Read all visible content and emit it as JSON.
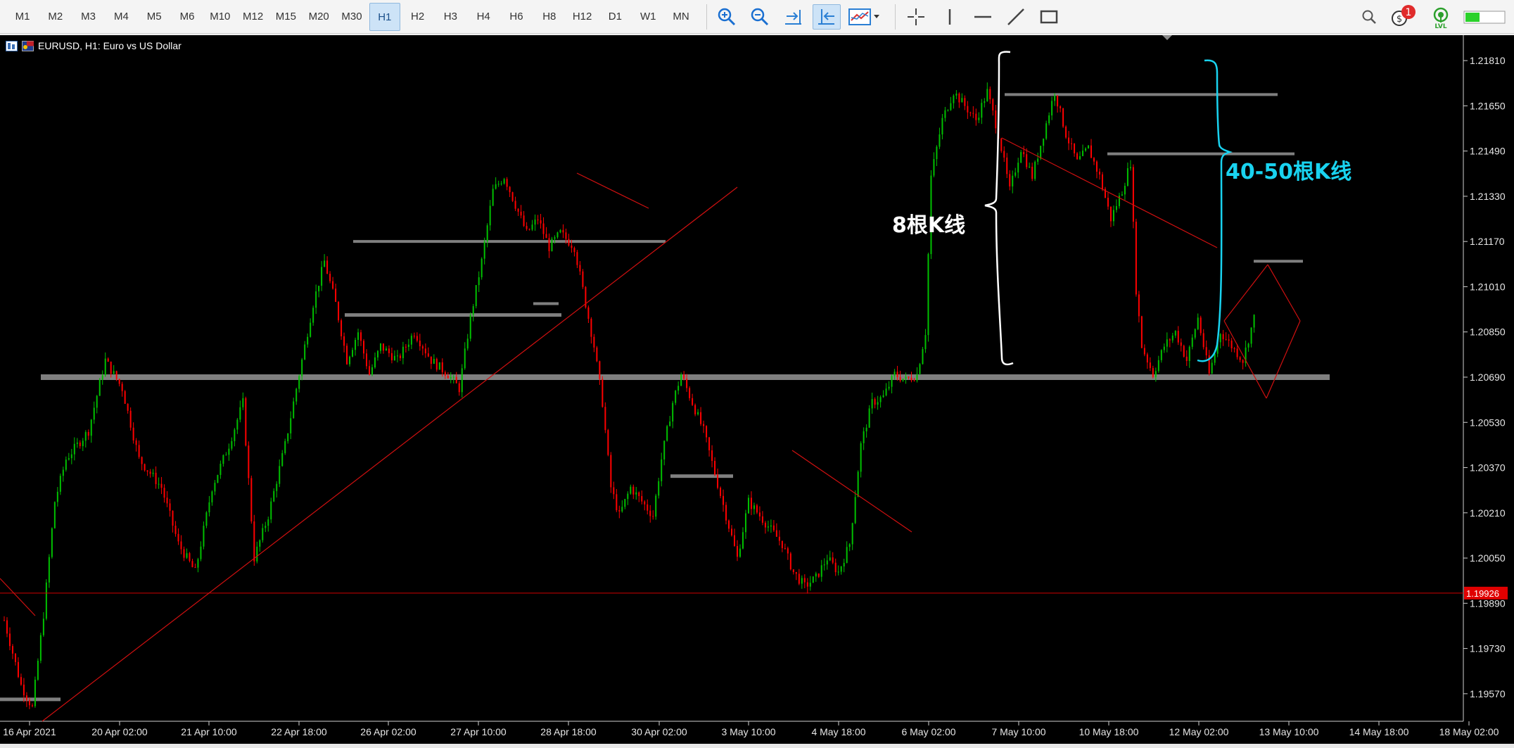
{
  "toolbar": {
    "timeframes": [
      "M1",
      "M2",
      "M3",
      "M4",
      "M5",
      "M6",
      "M10",
      "M12",
      "M15",
      "M20",
      "M30",
      "H1",
      "H2",
      "H3",
      "H4",
      "H6",
      "H8",
      "H12",
      "D1",
      "W1",
      "MN"
    ],
    "active_timeframe": "H1",
    "icons": [
      "zoom-in-icon",
      "zoom-out-icon",
      "scroll-end-icon",
      "chart-shift-icon",
      "indicators-icon",
      "crosshair-icon",
      "vertical-line-icon",
      "horizontal-line-icon",
      "trendline-icon",
      "rectangle-icon",
      "search-icon",
      "account-icon",
      "signal-icon",
      "connection-status-icon"
    ],
    "notification_count": "1",
    "signal_label": "LVL",
    "accent_color": "#1a6fd1"
  },
  "chart": {
    "title": "EURUSD, H1:  Euro vs US Dollar",
    "background": "#000000",
    "bull_color": "#00c000",
    "bear_color": "#ff0000",
    "current_price": "1.19926",
    "annotation_left": "8根K线",
    "annotation_right": "40-50根K线",
    "annotation_left_color": "#ffffff",
    "annotation_right_color": "#19d3f0",
    "level_line_color": "#7f7f7f",
    "trend_line_color": "#d01010"
  },
  "chart_data": {
    "type": "candlestick",
    "title": "EURUSD, H1:  Euro vs US Dollar",
    "symbol": "EURUSD",
    "timeframe": "H1",
    "x_tick_labels": [
      "16 Apr 2021",
      "20 Apr 02:00",
      "21 Apr 10:00",
      "22 Apr 18:00",
      "26 Apr 02:00",
      "27 Apr 10:00",
      "28 Apr 18:00",
      "30 Apr 02:00",
      "3 May 10:00",
      "4 May 18:00",
      "6 May 02:00",
      "7 May 10:00",
      "10 May 18:00",
      "12 May 02:00",
      "13 May 10:00",
      "14 May 18:00",
      "18 May 02:00"
    ],
    "y_tick_labels": [
      "1.21810",
      "1.21650",
      "1.21490",
      "1.21330",
      "1.21170",
      "1.21010",
      "1.20850",
      "1.20690",
      "1.20530",
      "1.20370",
      "1.20210",
      "1.20050",
      "1.19890",
      "1.19730",
      "1.19570"
    ],
    "ylim": [
      1.1951,
      1.219
    ],
    "current_price": 1.19926,
    "price_path": [
      [
        0,
        1.1983
      ],
      [
        6,
        1.196
      ],
      [
        10,
        1.1952
      ],
      [
        14,
        1.1985
      ],
      [
        18,
        1.2025
      ],
      [
        22,
        1.204
      ],
      [
        30,
        1.205
      ],
      [
        36,
        1.2075
      ],
      [
        42,
        1.2065
      ],
      [
        48,
        1.204
      ],
      [
        56,
        1.203
      ],
      [
        62,
        1.201
      ],
      [
        68,
        1.2
      ],
      [
        74,
        1.203
      ],
      [
        80,
        1.2045
      ],
      [
        85,
        1.206
      ],
      [
        89,
        1.2005
      ],
      [
        94,
        1.202
      ],
      [
        100,
        1.2045
      ],
      [
        106,
        1.2075
      ],
      [
        110,
        1.2095
      ],
      [
        114,
        1.211
      ],
      [
        118,
        1.2095
      ],
      [
        122,
        1.2075
      ],
      [
        126,
        1.2085
      ],
      [
        130,
        1.207
      ],
      [
        134,
        1.208
      ],
      [
        140,
        1.2075
      ],
      [
        146,
        1.2085
      ],
      [
        152,
        1.2075
      ],
      [
        158,
        1.207
      ],
      [
        162,
        1.2065
      ],
      [
        166,
        1.209
      ],
      [
        170,
        1.211
      ],
      [
        174,
        1.2135
      ],
      [
        178,
        1.214
      ],
      [
        182,
        1.213
      ],
      [
        186,
        1.212
      ],
      [
        190,
        1.2125
      ],
      [
        194,
        1.2115
      ],
      [
        198,
        1.212
      ],
      [
        203,
        1.2115
      ],
      [
        206,
        1.21
      ],
      [
        210,
        1.208
      ],
      [
        213,
        1.206
      ],
      [
        216,
        1.203
      ],
      [
        219,
        1.202
      ],
      [
        223,
        1.203
      ],
      [
        227,
        1.2025
      ],
      [
        231,
        1.202
      ],
      [
        234,
        1.204
      ],
      [
        238,
        1.206
      ],
      [
        241,
        1.207
      ],
      [
        245,
        1.206
      ],
      [
        249,
        1.205
      ],
      [
        253,
        1.2035
      ],
      [
        257,
        1.202
      ],
      [
        261,
        1.2005
      ],
      [
        265,
        1.2025
      ],
      [
        269,
        1.202
      ],
      [
        273,
        1.2015
      ],
      [
        277,
        1.201
      ],
      [
        281,
        1.2
      ],
      [
        285,
        1.1995
      ],
      [
        289,
        1.1998
      ],
      [
        293,
        1.2005
      ],
      [
        297,
        1.2
      ],
      [
        301,
        1.201
      ],
      [
        305,
        1.2045
      ],
      [
        309,
        1.206
      ],
      [
        313,
        1.2062
      ],
      [
        317,
        1.207
      ],
      [
        321,
        1.2068
      ],
      [
        325,
        1.207
      ],
      [
        328,
        1.2085
      ],
      [
        330,
        1.214
      ],
      [
        334,
        1.216
      ],
      [
        338,
        1.217
      ],
      [
        342,
        1.2165
      ],
      [
        346,
        1.216
      ],
      [
        350,
        1.217
      ],
      [
        354,
        1.2155
      ],
      [
        358,
        1.2135
      ],
      [
        362,
        1.215
      ],
      [
        366,
        1.214
      ],
      [
        370,
        1.2155
      ],
      [
        374,
        1.217
      ],
      [
        378,
        1.2155
      ],
      [
        382,
        1.2145
      ],
      [
        386,
        1.215
      ],
      [
        390,
        1.214
      ],
      [
        394,
        1.2125
      ],
      [
        398,
        1.2135
      ],
      [
        401,
        1.2145
      ],
      [
        403,
        1.21
      ],
      [
        405,
        1.208
      ],
      [
        409,
        1.207
      ],
      [
        413,
        1.208
      ],
      [
        417,
        1.2085
      ],
      [
        421,
        1.2075
      ],
      [
        425,
        1.209
      ],
      [
        429,
        1.207
      ],
      [
        433,
        1.2085
      ],
      [
        437,
        1.208
      ],
      [
        441,
        1.2075
      ],
      [
        445,
        1.209
      ]
    ],
    "horizontal_levels": [
      1.2069,
      1.2169,
      1.2148,
      1.2117,
      1.2095,
      1.2091,
      1.2034,
      1.211,
      1.1955
    ],
    "annotations": [
      "8根K线",
      "40-50根K线"
    ]
  }
}
